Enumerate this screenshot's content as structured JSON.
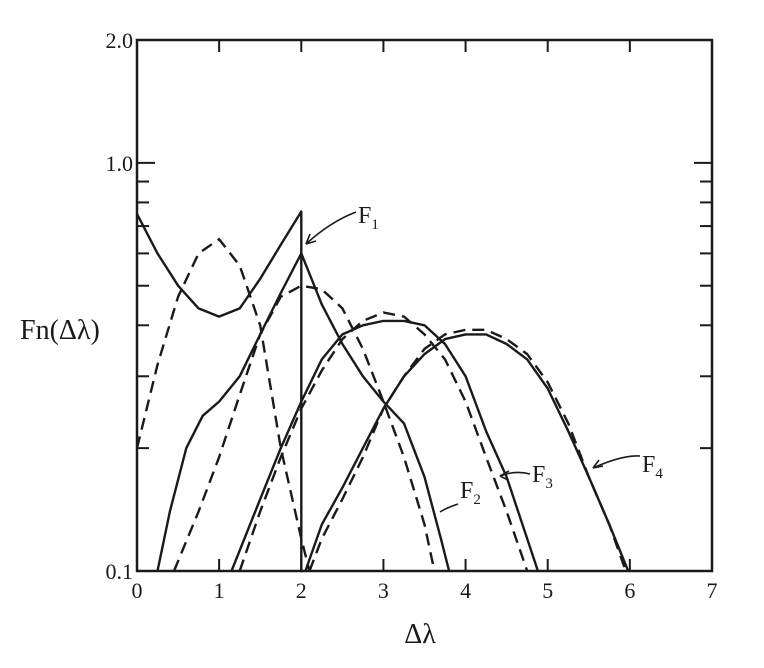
{
  "chart_data": {
    "type": "line",
    "xlabel": "Δλ",
    "ylabel": "Fn(Δλ)",
    "xlim": [
      0,
      7
    ],
    "ylim": [
      0.1,
      2.0
    ],
    "yscale": "log",
    "grid": false,
    "x_ticks": [
      "0",
      "1",
      "2",
      "3",
      "4",
      "5",
      "6",
      "7"
    ],
    "y_ticks": [
      "0.1",
      "1.0",
      "2.0"
    ],
    "annotations": [
      {
        "label": "F",
        "sub": "1"
      },
      {
        "label": "F",
        "sub": "2"
      },
      {
        "label": "F",
        "sub": "3"
      },
      {
        "label": "F",
        "sub": "4"
      }
    ],
    "series": [
      {
        "style": "solid",
        "x": [
          0,
          0.25,
          0.5,
          0.75,
          1.0,
          1.25,
          1.5,
          1.75,
          2.0,
          2.0,
          2.02
        ],
        "y": [
          0.75,
          0.6,
          0.5,
          0.44,
          0.42,
          0.44,
          0.52,
          0.63,
          0.76,
          0.1,
          0.1
        ]
      },
      {
        "style": "dashed",
        "x": [
          0,
          0.25,
          0.5,
          0.75,
          1.0,
          1.25,
          1.5,
          1.75,
          2.0,
          2.1
        ],
        "y": [
          0.2,
          0.32,
          0.47,
          0.6,
          0.65,
          0.56,
          0.4,
          0.2,
          0.12,
          0.1
        ]
      },
      {
        "style": "solid",
        "x": [
          0.25,
          0.4,
          0.6,
          0.8,
          1.0,
          1.25,
          1.5,
          1.75,
          2.0,
          2.25,
          2.5,
          2.75,
          3.0,
          3.25,
          3.5,
          3.7,
          3.8
        ],
        "y": [
          0.1,
          0.14,
          0.2,
          0.24,
          0.26,
          0.3,
          0.38,
          0.48,
          0.6,
          0.45,
          0.36,
          0.3,
          0.26,
          0.23,
          0.17,
          0.12,
          0.1
        ]
      },
      {
        "style": "dashed",
        "x": [
          0.45,
          0.75,
          1.0,
          1.25,
          1.5,
          1.75,
          2.0,
          2.25,
          2.5,
          2.75,
          3.0,
          3.25,
          3.5,
          3.62
        ],
        "y": [
          0.1,
          0.14,
          0.19,
          0.27,
          0.38,
          0.47,
          0.5,
          0.49,
          0.44,
          0.35,
          0.26,
          0.19,
          0.13,
          0.1
        ]
      },
      {
        "style": "solid",
        "x": [
          1.15,
          1.5,
          1.75,
          2.0,
          2.25,
          2.5,
          2.75,
          3.0,
          3.25,
          3.5,
          3.75,
          4.0,
          4.25,
          4.5,
          4.75,
          4.88
        ],
        "y": [
          0.1,
          0.15,
          0.2,
          0.26,
          0.33,
          0.38,
          0.4,
          0.41,
          0.41,
          0.4,
          0.36,
          0.3,
          0.22,
          0.17,
          0.12,
          0.1
        ]
      },
      {
        "style": "dashed",
        "x": [
          1.25,
          1.5,
          1.75,
          2.0,
          2.25,
          2.5,
          2.75,
          3.0,
          3.25,
          3.5,
          3.75,
          4.0,
          4.25,
          4.5,
          4.75
        ],
        "y": [
          0.1,
          0.14,
          0.19,
          0.25,
          0.31,
          0.37,
          0.41,
          0.43,
          0.42,
          0.38,
          0.33,
          0.26,
          0.19,
          0.14,
          0.1
        ]
      },
      {
        "style": "solid",
        "x": [
          2.05,
          2.25,
          2.5,
          2.75,
          3.0,
          3.25,
          3.5,
          3.75,
          4.0,
          4.25,
          4.5,
          4.75,
          5.0,
          5.25,
          5.5,
          5.75,
          5.98
        ],
        "y": [
          0.1,
          0.13,
          0.16,
          0.2,
          0.25,
          0.3,
          0.34,
          0.37,
          0.38,
          0.38,
          0.36,
          0.33,
          0.28,
          0.22,
          0.17,
          0.13,
          0.1
        ]
      },
      {
        "style": "dashed",
        "x": [
          2.1,
          2.25,
          2.5,
          2.75,
          3.0,
          3.25,
          3.5,
          3.75,
          4.0,
          4.25,
          4.5,
          4.75,
          5.0,
          5.25,
          5.5,
          5.75,
          5.95
        ],
        "y": [
          0.1,
          0.12,
          0.15,
          0.19,
          0.25,
          0.3,
          0.35,
          0.38,
          0.39,
          0.39,
          0.37,
          0.34,
          0.29,
          0.23,
          0.17,
          0.13,
          0.1
        ]
      }
    ]
  }
}
